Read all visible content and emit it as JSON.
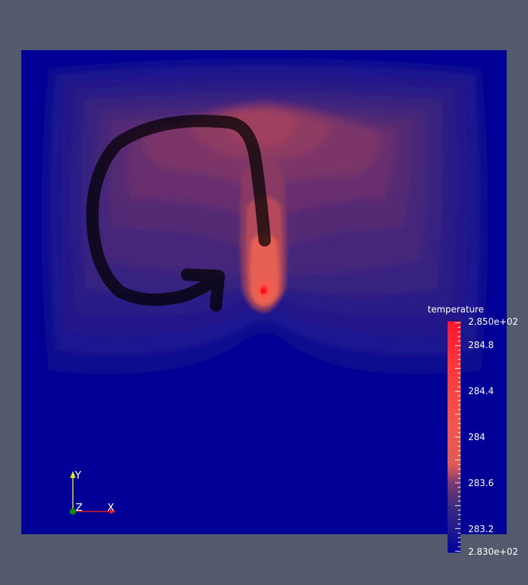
{
  "colorbar": {
    "title": "temperature",
    "max_label": "2.850e+02",
    "min_label": "2.830e+02",
    "tick_labels": [
      "284.8",
      "284.4",
      "284",
      "283.6",
      "283.2"
    ],
    "range": [
      283.0,
      285.0
    ]
  },
  "axes": {
    "x": "X",
    "y": "Y",
    "z": "Z"
  },
  "colors": {
    "background": "#535a6d",
    "field_cold": "#000099",
    "field_hot": "#ff1a2e",
    "axis_x": "#e02020",
    "axis_y": "#e8e820",
    "axis_z": "#108a10"
  }
}
